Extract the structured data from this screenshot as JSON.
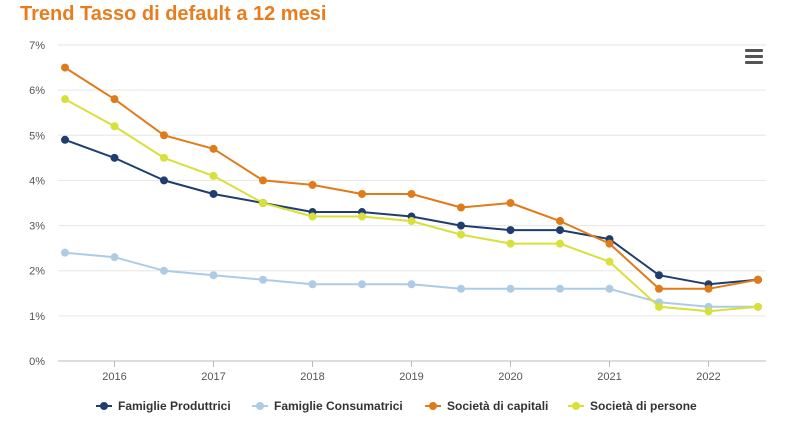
{
  "title": "Trend Tasso di default a 12 mesi",
  "menu_icon": "hamburger-menu-icon",
  "chart_data": {
    "type": "line",
    "title": "Trend Tasso di default a 12 mesi",
    "xlabel": "",
    "ylabel": "",
    "ylim": [
      0,
      7
    ],
    "y_ticks": [
      "0%",
      "1%",
      "2%",
      "3%",
      "4%",
      "5%",
      "6%",
      "7%"
    ],
    "x_ticks": [
      "2016",
      "2017",
      "2018",
      "2019",
      "2020",
      "2021",
      "2022"
    ],
    "grid": true,
    "legend_position": "bottom",
    "x": [
      2015.5,
      2016,
      2016.5,
      2017,
      2017.5,
      2018,
      2018.5,
      2019,
      2019.5,
      2020,
      2020.5,
      2021,
      2021.5,
      2022,
      2022.5
    ],
    "series": [
      {
        "name": "Famiglie Produttrici",
        "color": "#1f3d6e",
        "values": [
          4.9,
          4.5,
          4.0,
          3.7,
          3.5,
          3.3,
          3.3,
          3.2,
          3.0,
          2.9,
          2.9,
          2.7,
          1.9,
          1.7,
          1.8
        ]
      },
      {
        "name": "Famiglie Consumatrici",
        "color": "#aecbe6",
        "values": [
          2.4,
          2.3,
          2.0,
          1.9,
          1.8,
          1.7,
          1.7,
          1.7,
          1.6,
          1.6,
          1.6,
          1.6,
          1.3,
          1.2,
          1.2
        ]
      },
      {
        "name": "Società di capitali",
        "color": "#e07b19",
        "values": [
          6.5,
          5.8,
          5.0,
          4.7,
          4.0,
          3.9,
          3.7,
          3.7,
          3.4,
          3.5,
          3.1,
          2.6,
          1.6,
          1.6,
          1.8
        ]
      },
      {
        "name": "Società di persone",
        "color": "#d8e03a",
        "values": [
          5.8,
          5.2,
          4.5,
          4.1,
          3.5,
          3.2,
          3.2,
          3.1,
          2.8,
          2.6,
          2.6,
          2.2,
          1.2,
          1.1,
          1.2
        ]
      }
    ]
  }
}
